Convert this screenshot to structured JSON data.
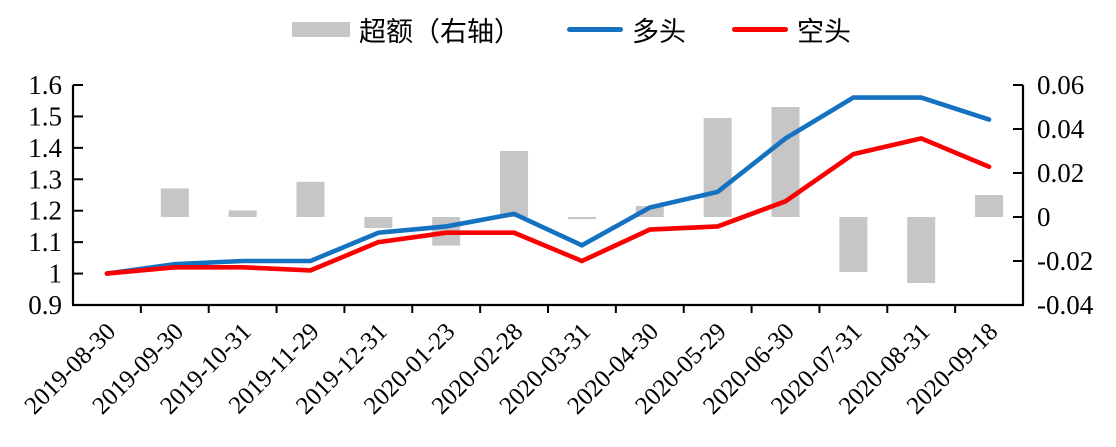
{
  "chart_data": {
    "type": "bar",
    "subtype": "combo-bar-line-dual-axis",
    "title": "",
    "categories": [
      "2019-08-30",
      "2019-09-30",
      "2019-10-31",
      "2019-11-29",
      "2019-12-31",
      "2020-01-23",
      "2020-02-28",
      "2020-03-31",
      "2020-04-30",
      "2020-05-29",
      "2020-06-30",
      "2020-07-31",
      "2020-08-31",
      "2020-09-18"
    ],
    "series": [
      {
        "name": "超额（右轴）",
        "type": "bar",
        "axis": "right",
        "color": "#C6C6C6",
        "values": [
          null,
          0.013,
          0.003,
          0.016,
          -0.005,
          -0.013,
          0.03,
          -0.001,
          0.005,
          0.045,
          0.05,
          -0.025,
          -0.03,
          0.01
        ]
      },
      {
        "name": "多头",
        "type": "line",
        "axis": "left",
        "color": "#1472C0",
        "values": [
          1.0,
          1.03,
          1.04,
          1.04,
          1.13,
          1.15,
          1.19,
          1.09,
          1.21,
          1.26,
          1.43,
          1.56,
          1.56,
          1.49
        ]
      },
      {
        "name": "空头",
        "type": "line",
        "axis": "left",
        "color": "#FB0000",
        "values": [
          1.0,
          1.02,
          1.02,
          1.01,
          1.1,
          1.13,
          1.13,
          1.04,
          1.14,
          1.15,
          1.23,
          1.38,
          1.43,
          1.34
        ]
      }
    ],
    "left_axis": {
      "min": 0.9,
      "max": 1.6,
      "tick_labels": [
        "1.6",
        "1.5",
        "1.4",
        "1.3",
        "1.2",
        "1.1",
        "1",
        "0.9"
      ]
    },
    "right_axis": {
      "min": -0.04,
      "max": 0.06,
      "tick_labels": [
        "0.06",
        "0.04",
        "0.02",
        "0",
        "-0.02",
        "-0.04"
      ]
    },
    "legend_position": "top",
    "grid": "off",
    "axis_color": "#000000",
    "text_color": "#000000"
  }
}
